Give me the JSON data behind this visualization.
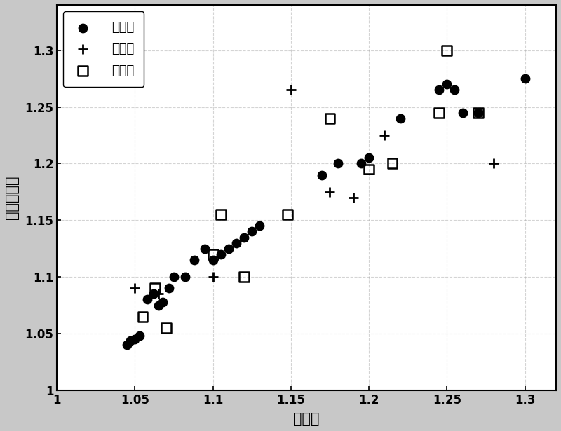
{
  "train_x": [
    1.045,
    1.047,
    1.05,
    1.053,
    1.058,
    1.062,
    1.065,
    1.068,
    1.072,
    1.075,
    1.082,
    1.088,
    1.095,
    1.1,
    1.105,
    1.11,
    1.115,
    1.12,
    1.125,
    1.13,
    1.17,
    1.18,
    1.195,
    1.2,
    1.22,
    1.245,
    1.25,
    1.255,
    1.26,
    1.27,
    1.3
  ],
  "train_y": [
    1.04,
    1.044,
    1.045,
    1.048,
    1.08,
    1.085,
    1.075,
    1.078,
    1.09,
    1.1,
    1.1,
    1.115,
    1.125,
    1.115,
    1.12,
    1.125,
    1.13,
    1.135,
    1.14,
    1.145,
    1.19,
    1.2,
    1.2,
    1.205,
    1.24,
    1.265,
    1.27,
    1.265,
    1.245,
    1.245,
    1.275
  ],
  "val_x": [
    1.05,
    1.065,
    1.1,
    1.15,
    1.175,
    1.19,
    1.21,
    1.28
  ],
  "val_y": [
    1.09,
    1.085,
    1.1,
    1.265,
    1.175,
    1.17,
    1.225,
    1.2
  ],
  "test_x": [
    1.055,
    1.063,
    1.07,
    1.1,
    1.105,
    1.12,
    1.148,
    1.175,
    1.2,
    1.215,
    1.245,
    1.25,
    1.27
  ],
  "test_y": [
    1.065,
    1.09,
    1.055,
    1.12,
    1.155,
    1.1,
    1.155,
    1.24,
    1.195,
    1.2,
    1.245,
    1.3,
    1.245
  ],
  "xlim": [
    1.0,
    1.32
  ],
  "ylim": [
    1.0,
    1.34
  ],
  "xticks": [
    1.0,
    1.05,
    1.1,
    1.15,
    1.2,
    1.25,
    1.3
  ],
  "yticks": [
    1.0,
    1.05,
    1.1,
    1.15,
    1.2,
    1.25,
    1.3
  ],
  "xticklabels": [
    "1",
    "1.05",
    "1.1",
    "1.15",
    "1.2",
    "1.25",
    "1.3"
  ],
  "yticklabels": [
    "1",
    "1.05",
    "1.1",
    "1.15",
    "1.2",
    "1.25",
    "1.3"
  ],
  "xlabel": "观测值",
  "ylabel": "模型计算值",
  "legend_labels": [
    "训练集",
    "验证集",
    "测试集"
  ],
  "train_color": "#000000",
  "val_color": "#000000",
  "test_color": "#000000",
  "fig_bg_color": "#c8c8c8",
  "plot_bg_color": "#ffffff",
  "marker_size_train": 80,
  "marker_size_val": 100,
  "marker_size_test": 100,
  "font_size_label": 15,
  "font_size_tick": 12,
  "font_size_legend": 13
}
